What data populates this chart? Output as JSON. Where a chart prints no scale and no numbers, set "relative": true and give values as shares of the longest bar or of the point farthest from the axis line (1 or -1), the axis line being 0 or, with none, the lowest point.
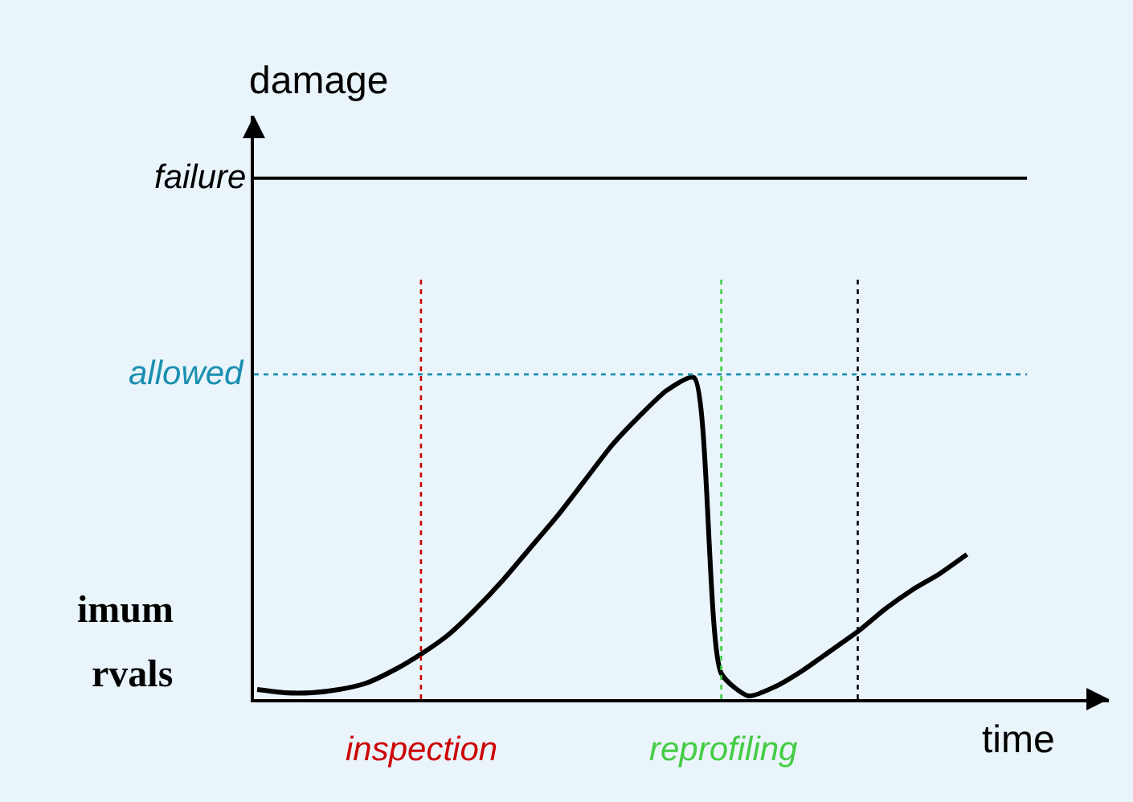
{
  "chart_data": {
    "type": "line",
    "relative": true,
    "xlabel": "time",
    "categories": [
      null,
      null,
      null,
      null,
      null,
      null,
      null,
      null,
      null,
      null,
      null,
      null,
      null,
      null,
      null,
      null,
      null,
      null,
      null,
      null,
      null,
      null,
      null,
      null,
      null,
      null,
      null
    ],
    "series": [
      {
        "color": "#000000",
        "values": [
          0.03,
          0.02,
          0.02,
          0.03,
          0.05,
          0.09,
          0.14,
          0.2,
          0.28,
          0.37,
          0.47,
          0.57,
          0.68,
          0.79,
          0.88,
          0.96,
          1.0,
          0.08,
          0.01,
          0.04,
          0.09,
          0.15,
          0.21,
          0.28,
          0.34,
          0.39,
          0.45
        ]
      }
    ],
    "marker": "none",
    "line_style": "solid",
    "grid": false,
    "ref_lines": [
      {
        "axis": "y",
        "value": 1.62,
        "label": "failure",
        "color": "#000000",
        "line_style": "solid"
      },
      {
        "axis": "y",
        "value": 1.01,
        "label": "allowed",
        "color": "#1a8fb0",
        "line_style": "dotted"
      }
    ],
    "annotations": [
      "damage",
      "imum",
      "rvals",
      "inspection",
      "reprofiling"
    ]
  }
}
